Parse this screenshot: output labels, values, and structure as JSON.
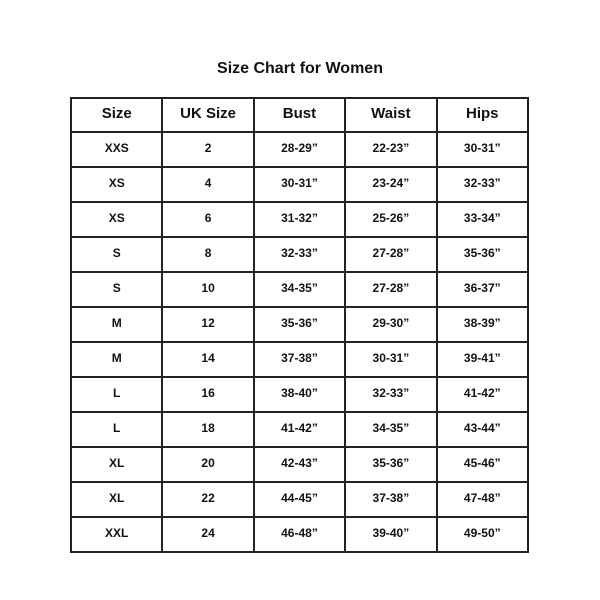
{
  "title": "Size Chart for Women",
  "headers": [
    "Size",
    "UK Size",
    "Bust",
    "Waist",
    "Hips"
  ],
  "rows": [
    [
      "XXS",
      "2",
      "28-29”",
      "22-23”",
      "30-31”"
    ],
    [
      "XS",
      "4",
      "30-31”",
      "23-24”",
      "32-33”"
    ],
    [
      "XS",
      "6",
      "31-32”",
      "25-26”",
      "33-34”"
    ],
    [
      "S",
      "8",
      "32-33”",
      "27-28”",
      "35-36”"
    ],
    [
      "S",
      "10",
      "34-35”",
      "27-28”",
      "36-37”"
    ],
    [
      "M",
      "12",
      "35-36”",
      "29-30”",
      "38-39”"
    ],
    [
      "M",
      "14",
      "37-38”",
      "30-31”",
      "39-41”"
    ],
    [
      "L",
      "16",
      "38-40”",
      "32-33”",
      "41-42”"
    ],
    [
      "L",
      "18",
      "41-42”",
      "34-35”",
      "43-44”"
    ],
    [
      "XL",
      "20",
      "42-43”",
      "35-36”",
      "45-46”"
    ],
    [
      "XL",
      "22",
      "44-45”",
      "37-38”",
      "47-48”"
    ],
    [
      "XXL",
      "24",
      "46-48”",
      "39-40”",
      "49-50”"
    ]
  ]
}
